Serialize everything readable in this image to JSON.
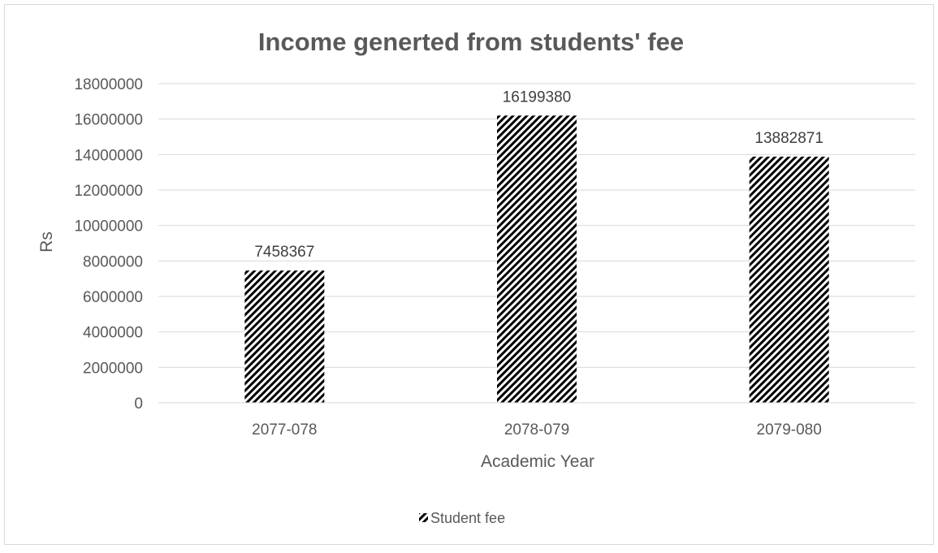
{
  "chart_data": {
    "type": "bar",
    "title": "Income generted from students' fee",
    "xlabel": "Academic Year",
    "ylabel": "Rs",
    "categories": [
      "2077-078",
      "2078-079",
      "2079-080"
    ],
    "series": [
      {
        "name": "Student fee",
        "values": [
          7458367,
          16199380,
          13882871
        ]
      }
    ],
    "ylim": [
      0,
      18000000
    ],
    "yticks": [
      "0",
      "2000000",
      "4000000",
      "6000000",
      "8000000",
      "10000000",
      "12000000",
      "14000000",
      "16000000",
      "18000000"
    ],
    "data_labels": [
      "7458367",
      "16199380",
      "13882871"
    ],
    "grid": true,
    "legend_position": "bottom",
    "bar_fill": "black-white diagonal hatch",
    "colors": {
      "bar_dark": "#000000",
      "bar_light": "#ffffff",
      "gridline": "#d9d9d9",
      "axis_text": "#595959",
      "title_text": "#595959",
      "border": "#d9d9d9"
    }
  }
}
